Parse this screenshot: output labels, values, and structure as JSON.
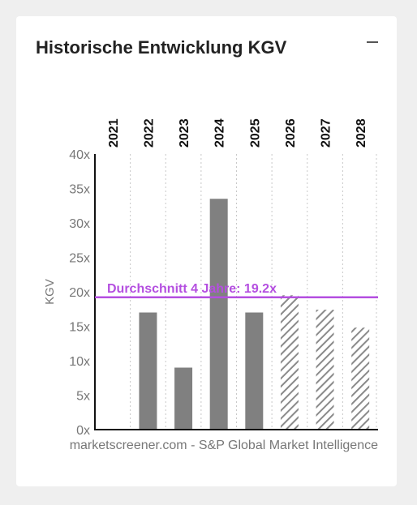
{
  "card": {
    "title": "Historische Entwicklung KGV"
  },
  "chart_data": {
    "type": "bar",
    "categories": [
      "2021",
      "2022",
      "2023",
      "2024",
      "2025",
      "2026",
      "2027",
      "2028"
    ],
    "values": [
      null,
      17.0,
      9.0,
      33.5,
      17.0,
      19.5,
      17.4,
      14.8
    ],
    "estimated": [
      false,
      false,
      false,
      false,
      false,
      true,
      true,
      true
    ],
    "ylabel": "KGV",
    "ylim": [
      0,
      40
    ],
    "yticks": [
      "0x",
      "5x",
      "10x",
      "15x",
      "20x",
      "25x",
      "30x",
      "35x",
      "40x"
    ],
    "average": {
      "value": 19.2,
      "label": "Durchschnitt 4 Jahre: 19.2x",
      "color": "#b44fe0"
    },
    "bar_color": "#808080",
    "source": "marketscreener.com - S&P Global Market Intelligence",
    "grid": "vertical-dotted"
  }
}
